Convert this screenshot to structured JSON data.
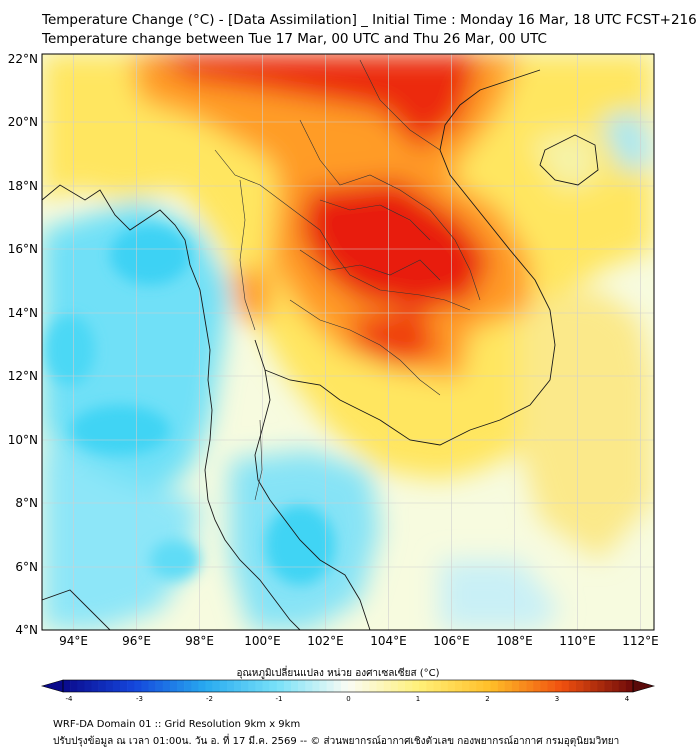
{
  "title_line1": "Temperature Change (°C) - [Data Assimilation] _ Initial Time : Monday 16 Mar, 18 UTC FCST+216",
  "title_line2": "Temperature change between Tue 17 Mar, 00 UTC and Thu 26 Mar, 00 UTC",
  "lat_labels": [
    "22°N",
    "20°N",
    "18°N",
    "16°N",
    "14°N",
    "12°N",
    "10°N",
    "8°N",
    "6°N",
    "4°N"
  ],
  "lon_labels": [
    "94°E",
    "96°E",
    "98°E",
    "100°E",
    "102°E",
    "104°E",
    "106°E",
    "108°E",
    "110°E",
    "112°E"
  ],
  "colorbar": {
    "title": "อุณหภูมิเปลี่ยนแปลง หน่วย องศาเซลเซียส (°C)",
    "ticks": [
      "-4",
      "-3",
      "-2",
      "-1",
      "0",
      "1",
      "2",
      "3",
      "4"
    ],
    "min": -4,
    "max": 4
  },
  "footer_line1": "WRF-DA Domain 01 :: Grid Resolution 9km x 9km",
  "footer_line2": "ปรับปรุงข้อมูล ณ เวลา 01:00น. วัน อ. ที่ 17 มี.ค. 2569 -- © ส่วนพยากรณ์อากาศเชิงตัวเลข กองพยากรณ์อากาศ กรมอุตุนิยมวิทยา",
  "colors": {
    "cold": "#3fd4f4",
    "light_cold": "#bff0fa",
    "neutral": "#f6fbe0",
    "warm": "#ffe15a",
    "hot": "#ff8a1a",
    "very_hot": "#e81b0c"
  }
}
